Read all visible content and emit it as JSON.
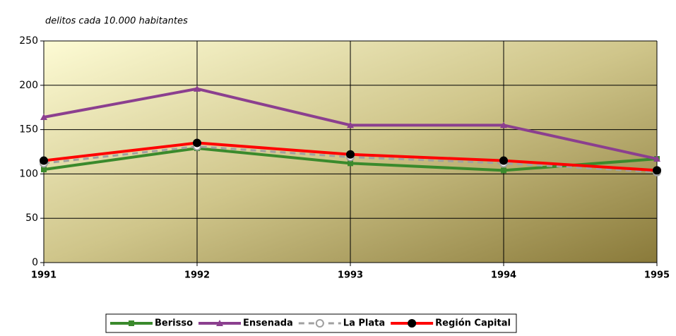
{
  "chart_data": {
    "type": "line",
    "subtitle": "delitos cada 10.000 habitantes",
    "x": [
      1991,
      1992,
      1993,
      1994,
      1995
    ],
    "xlim": [
      1991,
      1995
    ],
    "xticks": [
      1991,
      1992,
      1993,
      1994,
      1995
    ],
    "ylim": [
      0,
      250
    ],
    "yticks": [
      0,
      50,
      100,
      150,
      200,
      250
    ],
    "grid": true,
    "legend": "bottom",
    "series": [
      {
        "name": "Berisso",
        "color": "#3a8a2c",
        "marker": "square",
        "marker_color": "#3a8a2c",
        "dash": false,
        "values": [
          105,
          129,
          112,
          104,
          117
        ]
      },
      {
        "name": "Ensenada",
        "color": "#8b3f8f",
        "marker": "triangle",
        "marker_color": "#8b3f8f",
        "dash": false,
        "values": [
          164,
          196,
          155,
          155,
          117
        ]
      },
      {
        "name": "La Plata",
        "color": "#a0a0a0",
        "marker": "circle",
        "marker_color": "#a0a0a0",
        "dash": true,
        "values": [
          112,
          131,
          119,
          112,
          102
        ]
      },
      {
        "name": "Región Capital",
        "color": "#ff0000",
        "marker": "circle",
        "marker_color": "#000000",
        "dash": false,
        "values": [
          115,
          135,
          122,
          115,
          104
        ]
      }
    ]
  }
}
